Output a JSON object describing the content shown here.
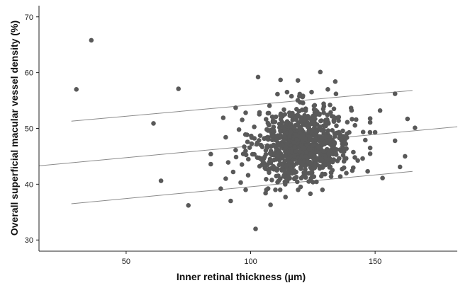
{
  "chart_data": {
    "type": "scatter",
    "title": "",
    "xlabel": "Inner retinal thickness  (µm)",
    "ylabel": "Overall superficial macular vessel density (%)",
    "xlim": [
      15,
      183
    ],
    "ylim": [
      28,
      72
    ],
    "x_ticks": [
      50,
      100,
      150
    ],
    "y_ticks": [
      30,
      40,
      50,
      60,
      70
    ],
    "grid": false,
    "legend": "none",
    "marker_color": "#595959",
    "line_color": "#8a8a8a",
    "outliers": [
      {
        "x": 30,
        "y": 57.0
      },
      {
        "x": 36,
        "y": 65.8
      },
      {
        "x": 61,
        "y": 50.9
      },
      {
        "x": 64,
        "y": 40.6
      },
      {
        "x": 71,
        "y": 57.1
      },
      {
        "x": 75,
        "y": 36.2
      },
      {
        "x": 102,
        "y": 32.0
      },
      {
        "x": 128,
        "y": 60.1
      },
      {
        "x": 166,
        "y": 50.1
      },
      {
        "x": 158,
        "y": 56.2
      },
      {
        "x": 162,
        "y": 45.0
      },
      {
        "x": 160,
        "y": 43.1
      },
      {
        "x": 158,
        "y": 47.8
      },
      {
        "x": 163,
        "y": 51.7
      },
      {
        "x": 153,
        "y": 41.1
      },
      {
        "x": 84,
        "y": 45.4
      },
      {
        "x": 84,
        "y": 43.6
      },
      {
        "x": 88,
        "y": 39.2
      },
      {
        "x": 92,
        "y": 37.0
      },
      {
        "x": 94,
        "y": 53.7
      },
      {
        "x": 90,
        "y": 48.4
      },
      {
        "x": 89,
        "y": 51.9
      },
      {
        "x": 96,
        "y": 40.3
      },
      {
        "x": 98,
        "y": 39.0
      },
      {
        "x": 103,
        "y": 59.2
      },
      {
        "x": 108,
        "y": 36.3
      },
      {
        "x": 112,
        "y": 58.7
      },
      {
        "x": 134,
        "y": 58.4
      },
      {
        "x": 148,
        "y": 46.5
      },
      {
        "x": 145,
        "y": 44.6
      },
      {
        "x": 150,
        "y": 49.3
      },
      {
        "x": 147,
        "y": 42.3
      },
      {
        "x": 152,
        "y": 53.2
      },
      {
        "x": 131,
        "y": 57.0
      },
      {
        "x": 119,
        "y": 58.6
      },
      {
        "x": 124,
        "y": 38.3
      },
      {
        "x": 114,
        "y": 37.7
      },
      {
        "x": 106,
        "y": 38.4
      },
      {
        "x": 99,
        "y": 41.6
      },
      {
        "x": 93,
        "y": 42.2
      },
      {
        "x": 91,
        "y": 43.9
      },
      {
        "x": 90,
        "y": 41.0
      }
    ],
    "cluster": {
      "center_x": 121,
      "center_y": 47.3,
      "sd_x": 9.5,
      "sd_y": 3.3,
      "count": 900
    },
    "fit_lines": [
      {
        "name": "upper",
        "x": [
          28,
          165
        ],
        "y": [
          51.3,
          56.8
        ]
      },
      {
        "name": "fit",
        "x": [
          15,
          183
        ],
        "y": [
          43.3,
          50.3
        ]
      },
      {
        "name": "lower",
        "x": [
          28,
          165
        ],
        "y": [
          36.5,
          42.3
        ]
      }
    ]
  }
}
